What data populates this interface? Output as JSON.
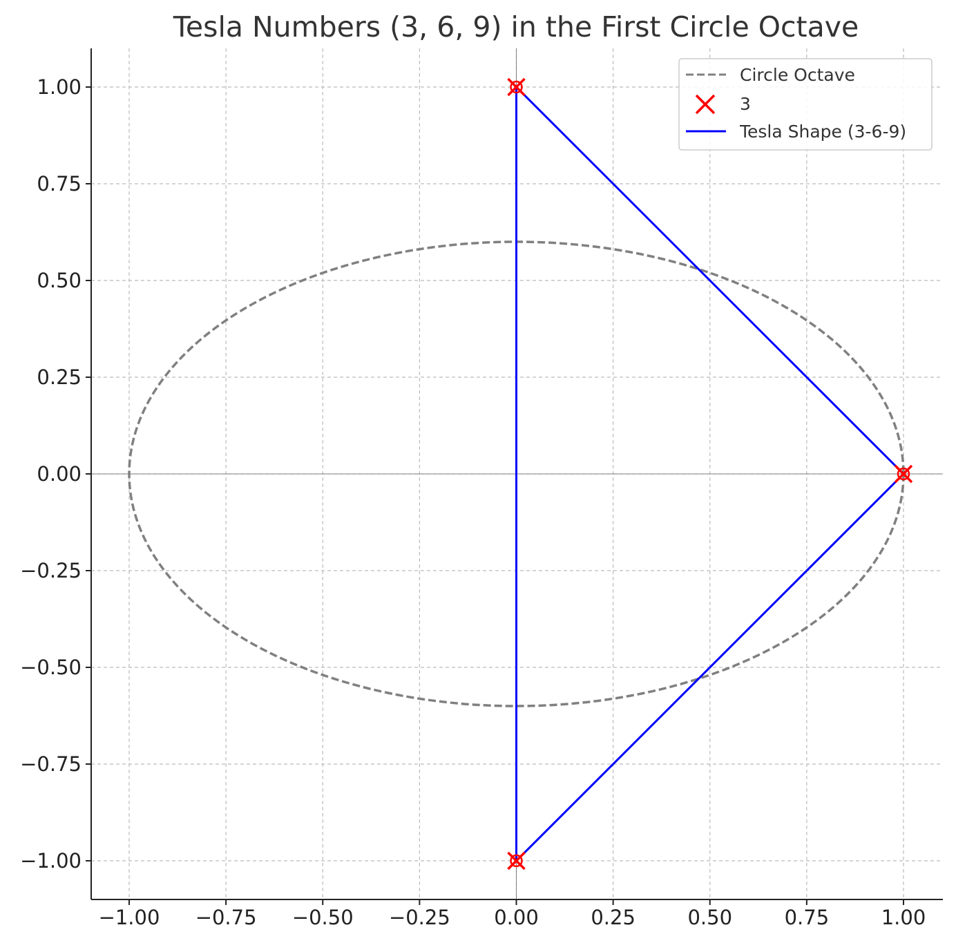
{
  "chart_data": {
    "type": "line",
    "title": "Tesla Numbers (3, 6, 9) in the First Circle Octave",
    "xlabel": "",
    "ylabel": "",
    "xlim": [
      -1.1,
      1.1
    ],
    "ylim": [
      -1.1,
      1.1
    ],
    "xticks": [
      "−1.00",
      "−0.75",
      "−0.50",
      "−0.25",
      "0.00",
      "0.25",
      "0.50",
      "0.75",
      "1.00"
    ],
    "yticks": [
      "1.00",
      "0.75",
      "0.50",
      "0.25",
      "0.00",
      "−0.25",
      "−0.50",
      "−0.75",
      "−1.00"
    ],
    "grid": true,
    "legend_position": "top-right",
    "series": [
      {
        "name": "Circle Octave",
        "kind": "ellipse",
        "style": "dashed",
        "color": "#808080",
        "center": [
          0,
          0
        ],
        "rx": 1.0,
        "ry": 0.6
      },
      {
        "name": "3",
        "kind": "scatter",
        "marker": "x",
        "color": "#ff0000",
        "x": [
          0.0,
          1.0,
          0.0
        ],
        "y": [
          1.0,
          0.0,
          -1.0
        ]
      },
      {
        "name": "Tesla Shape (3-6-9)",
        "kind": "line",
        "color": "#0000ff",
        "x": [
          0.0,
          1.0,
          0.0,
          0.0
        ],
        "y": [
          1.0,
          0.0,
          -1.0,
          1.0
        ]
      }
    ],
    "extra_markers": {
      "marker": "o",
      "color": "#ff0000",
      "x": [
        0.0,
        1.0,
        0.0
      ],
      "y": [
        1.0,
        0.0,
        -1.0
      ]
    },
    "reference_lines": {
      "x": 0,
      "y": 0,
      "color": "#808080"
    }
  }
}
